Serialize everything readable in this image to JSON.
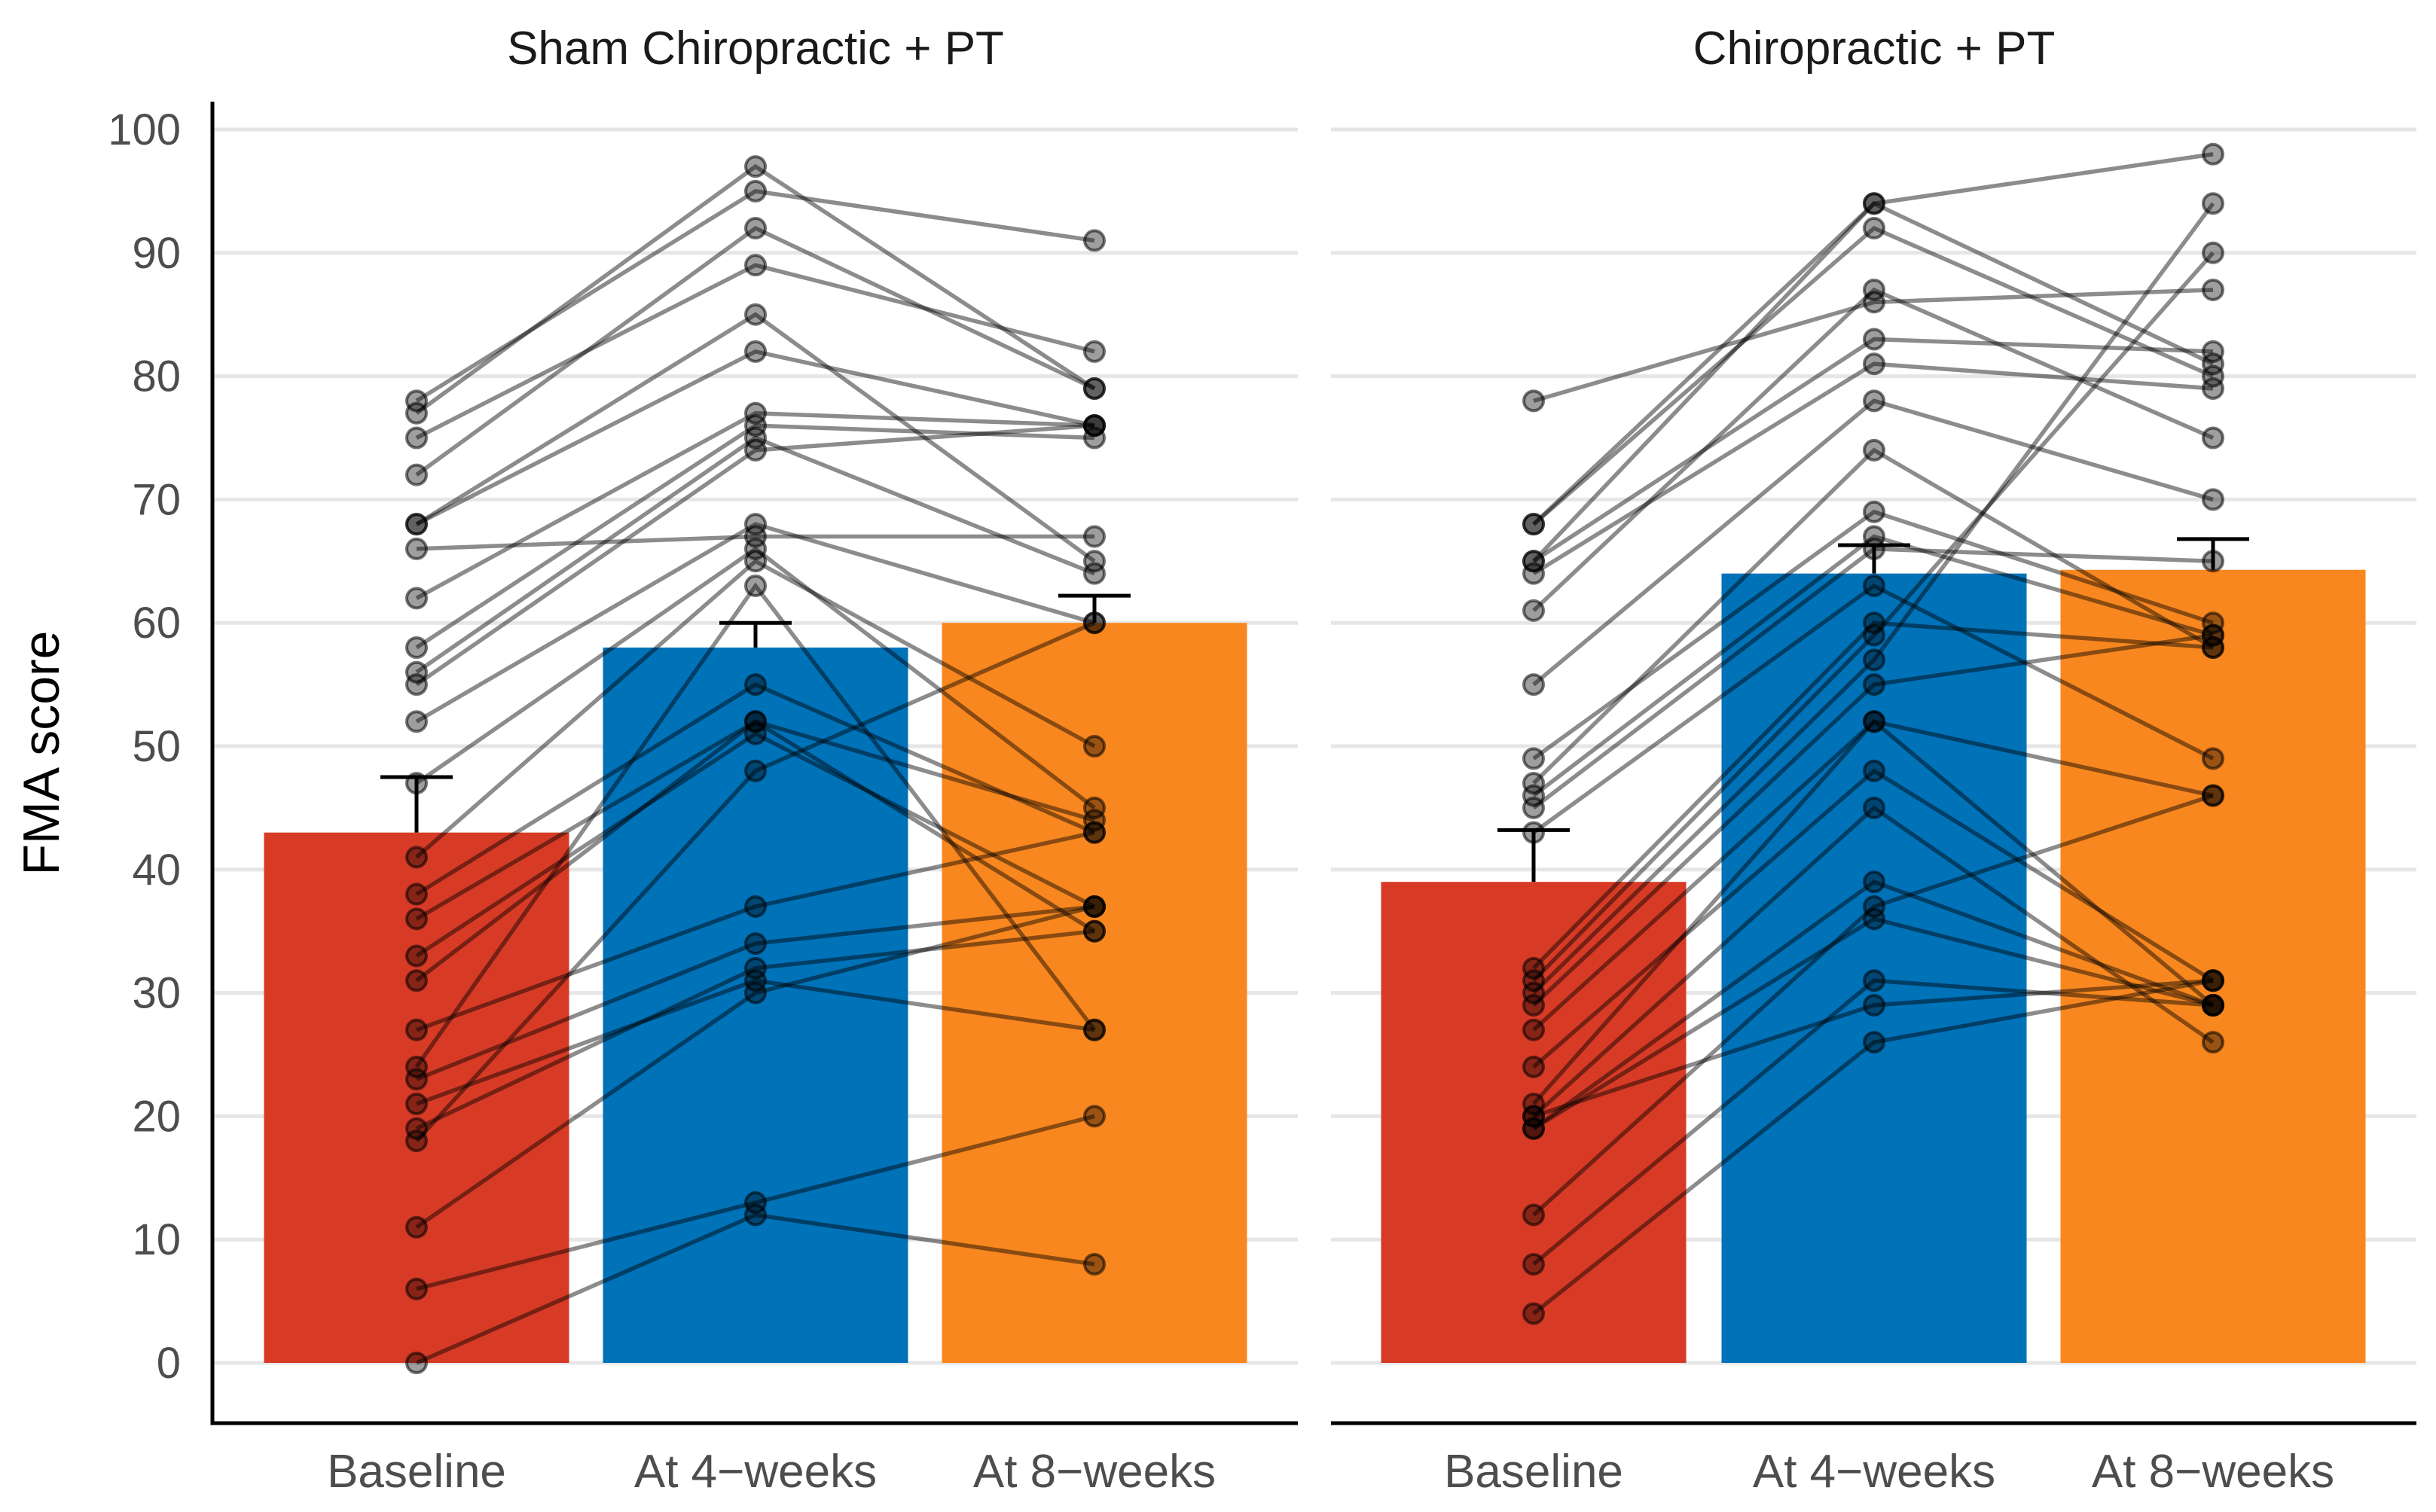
{
  "chart_data": {
    "type": "bar",
    "ylabel": "FMA score",
    "ylim": [
      -5,
      103
    ],
    "yticks": [
      0,
      10,
      20,
      30,
      40,
      50,
      60,
      70,
      80,
      90,
      100
    ],
    "ytick_labels": [
      "0",
      "10",
      "20",
      "30",
      "40",
      "50",
      "60",
      "70",
      "80",
      "90",
      "100"
    ],
    "categories": [
      "Baseline",
      "At 4−weeks",
      "At 8−weeks"
    ],
    "colors": [
      "#d73b26",
      "#0072b8",
      "#f8871f"
    ],
    "grid": true,
    "panels": [
      {
        "title": "Sham Chiropractic + PT",
        "means": [
          43,
          58,
          60
        ],
        "error_upper": [
          47.5,
          60,
          62.2
        ],
        "subjects": [
          [
            78,
            95,
            91
          ],
          [
            77,
            97,
            79
          ],
          [
            75,
            89,
            82
          ],
          [
            72,
            92,
            79
          ],
          [
            68,
            85,
            65
          ],
          [
            68,
            82,
            76
          ],
          [
            66,
            67,
            67
          ],
          [
            62,
            77,
            76
          ],
          [
            58,
            76,
            75
          ],
          [
            56,
            75,
            64
          ],
          [
            55,
            74,
            76
          ],
          [
            52,
            68,
            60
          ],
          [
            47,
            66,
            45
          ],
          [
            41,
            65,
            50
          ],
          [
            38,
            55,
            43
          ],
          [
            36,
            52,
            44
          ],
          [
            33,
            51,
            37
          ],
          [
            31,
            52,
            35
          ],
          [
            27,
            37,
            43
          ],
          [
            24,
            63,
            27
          ],
          [
            23,
            34,
            37
          ],
          [
            21,
            31,
            27
          ],
          [
            19,
            32,
            35
          ],
          [
            18,
            48,
            60
          ],
          [
            11,
            30,
            37
          ],
          [
            6,
            13,
            20
          ],
          [
            0,
            12,
            8
          ]
        ]
      },
      {
        "title": "Chiropractic + PT",
        "means": [
          39,
          64,
          64.3
        ],
        "error_upper": [
          43.2,
          66.3,
          66.8
        ],
        "subjects": [
          [
            78,
            86,
            87
          ],
          [
            68,
            94,
            81
          ],
          [
            68,
            92,
            80
          ],
          [
            65,
            94,
            98
          ],
          [
            65,
            83,
            82
          ],
          [
            64,
            81,
            79
          ],
          [
            61,
            87,
            75
          ],
          [
            55,
            78,
            70
          ],
          [
            49,
            69,
            60
          ],
          [
            47,
            74,
            58
          ],
          [
            46,
            67,
            59
          ],
          [
            45,
            66,
            65
          ],
          [
            43,
            63,
            49
          ],
          [
            32,
            60,
            58
          ],
          [
            31,
            59,
            90
          ],
          [
            30,
            57,
            94
          ],
          [
            29,
            55,
            59
          ],
          [
            27,
            52,
            46
          ],
          [
            24,
            48,
            31
          ],
          [
            21,
            52,
            29
          ],
          [
            20,
            45,
            26
          ],
          [
            19,
            39,
            29
          ],
          [
            12,
            37,
            46
          ],
          [
            8,
            31,
            29
          ],
          [
            4,
            26,
            31
          ],
          [
            19,
            36,
            29
          ],
          [
            20,
            29,
            31
          ]
        ]
      }
    ]
  }
}
